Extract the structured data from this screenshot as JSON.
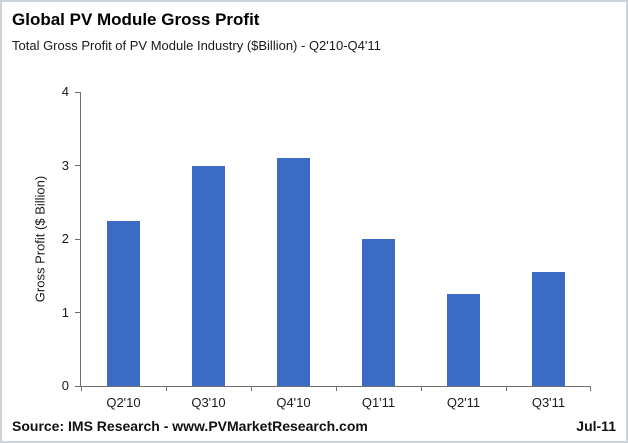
{
  "header": {
    "title": "Global PV Module Gross Profit",
    "subtitle": "Total Gross Profit of PV Module Industry ($Billion) - Q2'10-Q4'11"
  },
  "chart_data": {
    "type": "bar",
    "title": "Global PV Module Gross Profit",
    "subtitle": "Total Gross Profit of PV Module Industry ($Billion) - Q2'10-Q4'11",
    "categories": [
      "Q2'10",
      "Q3'10",
      "Q4'10",
      "Q1'11",
      "Q2'11",
      "Q3'11"
    ],
    "values": [
      2.25,
      3.0,
      3.1,
      2.0,
      1.25,
      1.55
    ],
    "xlabel": "",
    "ylabel": "Gross Profit ($ Billion)",
    "ylim": [
      0,
      4
    ],
    "yticks": [
      0,
      1,
      2,
      3,
      4
    ],
    "grid": false,
    "legend": false,
    "bar_color": "#3a6bc5",
    "axis_color": "#6f6f6f"
  },
  "footer": {
    "source": "Source: IMS Research - www.PVMarketResearch.com",
    "date": "Jul-11"
  }
}
